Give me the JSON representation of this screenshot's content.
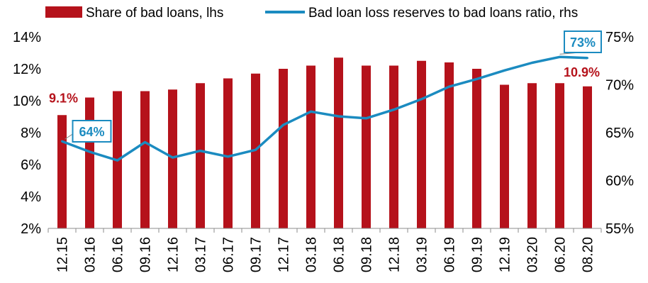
{
  "chart_data": {
    "type": "bar",
    "categories": [
      "12.15",
      "03.16",
      "06.16",
      "09.16",
      "12.16",
      "03.17",
      "06.17",
      "09.17",
      "12.17",
      "03.18",
      "06.18",
      "09.18",
      "12.18",
      "03.19",
      "06.19",
      "09.19",
      "12.19",
      "03.20",
      "06.20",
      "08.20"
    ],
    "series": [
      {
        "name": "Share of bad loans, lhs",
        "type": "bar",
        "axis": "left",
        "color": "#b5121b",
        "values": [
          9.1,
          10.2,
          10.6,
          10.6,
          10.7,
          11.1,
          11.4,
          11.7,
          12.0,
          12.2,
          12.7,
          12.2,
          12.2,
          12.5,
          12.4,
          12.0,
          11.0,
          11.1,
          11.1,
          10.9
        ]
      },
      {
        "name": "Bad loan loss reserves to bad loans ratio, rhs",
        "type": "line",
        "axis": "right",
        "color": "#1b8bc0",
        "values": [
          64.1,
          63.0,
          62.1,
          64.0,
          62.4,
          63.1,
          62.5,
          63.2,
          65.8,
          67.2,
          66.7,
          66.5,
          67.4,
          68.5,
          69.8,
          70.6,
          71.5,
          72.3,
          72.9,
          72.8
        ]
      }
    ],
    "y_left": {
      "lim": [
        2,
        14
      ],
      "ticks": [
        "2%",
        "4%",
        "6%",
        "8%",
        "10%",
        "12%",
        "14%"
      ]
    },
    "y_right": {
      "lim": [
        55,
        75
      ],
      "ticks": [
        "55%",
        "60%",
        "65%",
        "70%",
        "75%"
      ]
    },
    "legend": {
      "placement": "top"
    },
    "grid": false,
    "annotations": {
      "bar_first": "9.1%",
      "bar_last": "10.9%",
      "line_first": "64%",
      "line_last": "73%"
    }
  }
}
